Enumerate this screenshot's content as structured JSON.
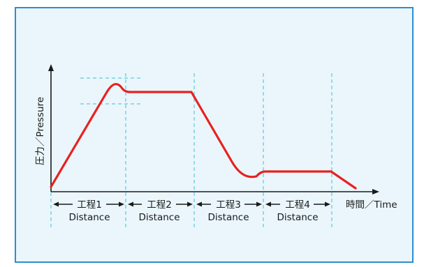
{
  "axes": {
    "y_label": "圧力／Pressure",
    "x_label": "時間／Time"
  },
  "steps": [
    {
      "name": "工程1",
      "sub": "Distance"
    },
    {
      "name": "工程2",
      "sub": "Distance"
    },
    {
      "name": "工程3",
      "sub": "Distance"
    },
    {
      "name": "工程4",
      "sub": "Distance"
    }
  ],
  "colors": {
    "frame_border": "#2b8fd0",
    "background": "#eaf6fb",
    "curve": "#e8211f",
    "guide": "#3cc0d8",
    "axis": "#1a1a1a"
  }
}
